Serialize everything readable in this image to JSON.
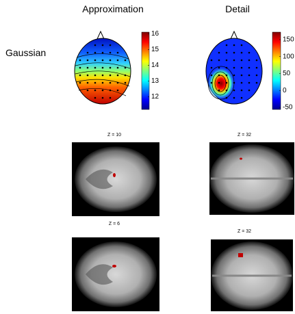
{
  "columns": [
    "Approximation",
    "Detail"
  ],
  "row_label": "Gaussian",
  "colorbars": [
    {
      "clim": [
        11.2,
        16.1
      ],
      "ticks": [
        16,
        15,
        14,
        13,
        12
      ]
    },
    {
      "clim": [
        -56,
        172
      ],
      "ticks": [
        150,
        100,
        50,
        0,
        -50
      ]
    }
  ],
  "slices": [
    {
      "label": "Z = 10"
    },
    {
      "label": "Z = 32"
    },
    {
      "label": "Z = 6"
    },
    {
      "label": "Z = 32"
    }
  ]
}
